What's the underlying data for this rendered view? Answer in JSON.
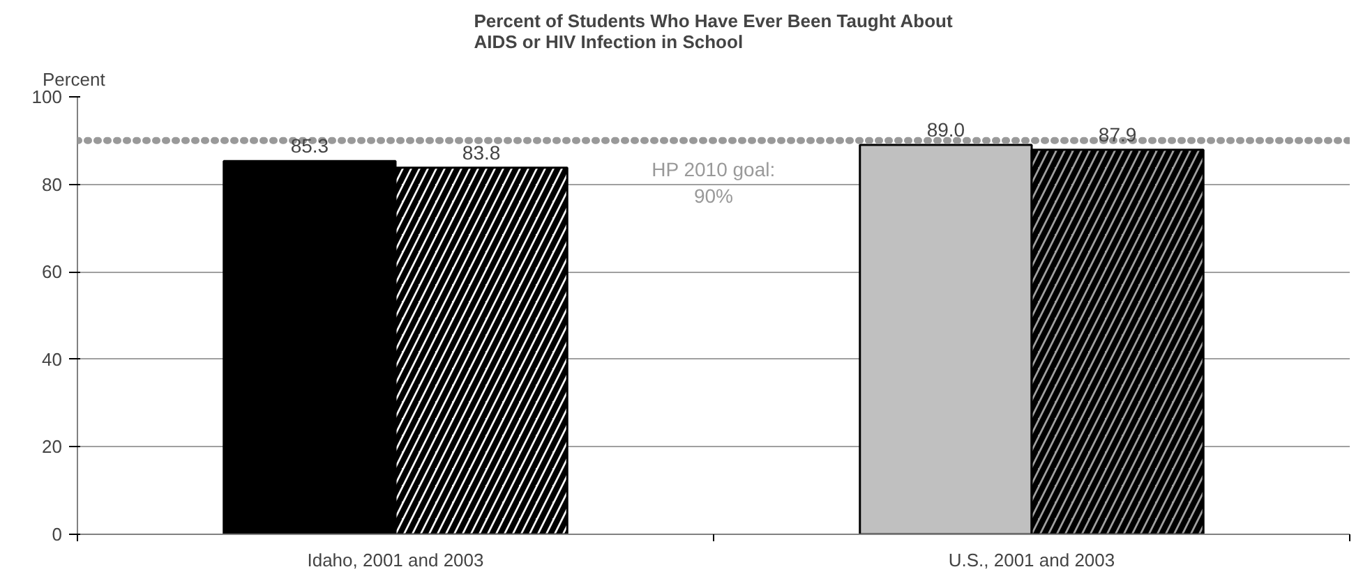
{
  "chart_data": {
    "type": "bar",
    "title": "Percent of Students Who Have Ever Been Taught About\nAIDS or HIV Infection in School",
    "ylabel": "Percent",
    "categories": [
      "Idaho, 2001 and 2003",
      "U.S., 2001 and 2003"
    ],
    "series": [
      {
        "colors": [
          "#000000",
          "#c0c0c0"
        ],
        "values": [
          85.3,
          89.0
        ],
        "value_labels": [
          "85.3",
          "89.0"
        ]
      },
      {
        "colors": [
          "#f8f8f8",
          "#a0a0a0"
        ],
        "values": [
          83.8,
          87.9
        ],
        "value_labels": [
          "83.8",
          "87.9"
        ]
      }
    ],
    "ylim": [
      0,
      100
    ],
    "yticks": [
      0,
      20,
      40,
      60,
      80,
      100
    ],
    "grid": "y",
    "ref_lines": [
      {
        "axis": "y",
        "value": 90,
        "label": "HP 2010 goal:\n90%",
        "color": "#999999",
        "line_style": "dotted"
      }
    ]
  }
}
